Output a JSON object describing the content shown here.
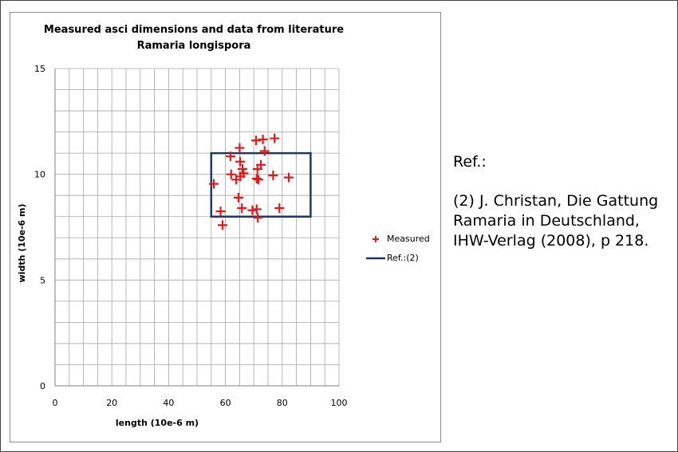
{
  "chart_data": {
    "type": "scatter",
    "title": [
      "Measured asci dimensions and data from literature",
      "Ramaria longispora"
    ],
    "xlabel": "length (10e-6 m)",
    "ylabel": "width (10e-6 m)",
    "xlim": [
      0,
      100
    ],
    "ylim": [
      0,
      15
    ],
    "x_ticks": [
      0,
      20,
      40,
      60,
      80,
      100
    ],
    "y_ticks": [
      0,
      5,
      10,
      15
    ],
    "grid": true,
    "legend_position": "right",
    "series": [
      {
        "name": "Measured",
        "marker": "plus",
        "color": "#e31a1c",
        "points": [
          [
            55.9,
            9.55
          ],
          [
            58.3,
            8.25
          ],
          [
            59.0,
            7.6
          ],
          [
            61.8,
            10.85
          ],
          [
            62.0,
            10.0
          ],
          [
            63.8,
            9.75
          ],
          [
            64.6,
            8.9
          ],
          [
            65.0,
            11.25
          ],
          [
            65.2,
            10.6
          ],
          [
            65.3,
            9.9
          ],
          [
            65.8,
            8.4
          ],
          [
            66.0,
            10.25
          ],
          [
            66.4,
            10.05
          ],
          [
            69.5,
            8.3
          ],
          [
            70.8,
            11.6
          ],
          [
            71.0,
            8.35
          ],
          [
            71.0,
            9.8
          ],
          [
            71.3,
            10.25
          ],
          [
            71.4,
            7.95
          ],
          [
            71.6,
            9.75
          ],
          [
            72.5,
            10.45
          ],
          [
            73.2,
            11.65
          ],
          [
            73.8,
            11.1
          ],
          [
            77.3,
            11.7
          ],
          [
            76.8,
            9.95
          ],
          [
            79.0,
            8.4
          ],
          [
            82.3,
            9.85
          ]
        ]
      },
      {
        "name": "Ref.:(2)",
        "shape": "rectangle",
        "color": "#1f3864",
        "x_range": [
          55,
          90
        ],
        "y_range": [
          8,
          11
        ]
      }
    ]
  },
  "reference_panel": {
    "heading": "Ref.:",
    "lines": [
      "(2) J. Christan, Die Gattung",
      "Ramaria in Deutschland,",
      "IHW-Verlag (2008), p 218."
    ]
  }
}
